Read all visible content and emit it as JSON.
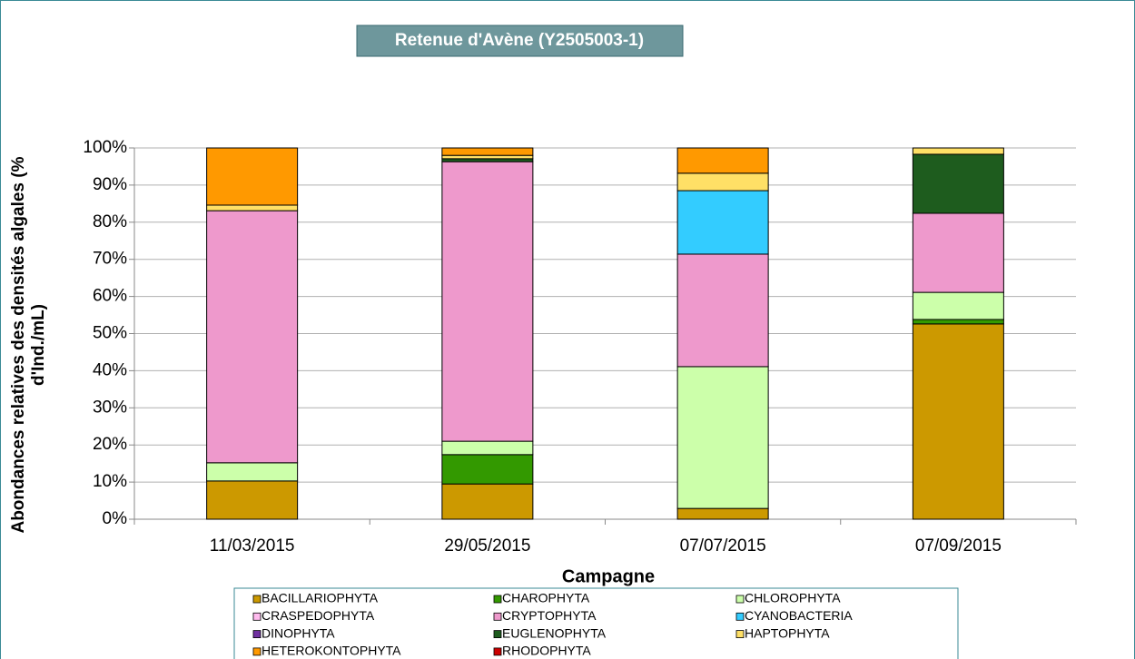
{
  "chart_data": {
    "type": "stacked_bar",
    "title": "Retenue d'Avène (Y2505003-1)",
    "x_label": "Campagne",
    "y_label": "Abondances relatives des densités algales (% d'Ind./mL)",
    "categories": [
      "11/03/2015",
      "29/05/2015",
      "07/07/2015",
      "07/09/2015"
    ],
    "series": [
      {
        "name": "BACILLARIOPHYTA",
        "color": "#cc9900",
        "values": [
          10.3,
          9.5,
          2.9,
          52.6
        ]
      },
      {
        "name": "CHAROPHYTA",
        "color": "#339900",
        "values": [
          0,
          7.9,
          0,
          1.2
        ]
      },
      {
        "name": "CHLOROPHYTA",
        "color": "#ccffaa",
        "values": [
          4.9,
          3.6,
          38.2,
          7.3
        ]
      },
      {
        "name": "CRASPEDOPHYTA",
        "color": "#ffbbee",
        "values": [
          0,
          0,
          0,
          0
        ]
      },
      {
        "name": "CRYPTOPHYTA",
        "color": "#ee99cc",
        "values": [
          67.9,
          75.3,
          30.3,
          21.3
        ]
      },
      {
        "name": "CYANOBACTERIA",
        "color": "#33ccff",
        "values": [
          0,
          0,
          17.1,
          0
        ]
      },
      {
        "name": "DINOPHYTA",
        "color": "#7030a0",
        "values": [
          0,
          0,
          0,
          0
        ]
      },
      {
        "name": "EUGLENOPHYTA",
        "color": "#1e5c1e",
        "values": [
          0,
          0.8,
          0,
          15.9
        ]
      },
      {
        "name": "HAPTOPHYTA",
        "color": "#ffe066",
        "values": [
          1.5,
          0.9,
          4.7,
          1.7
        ]
      },
      {
        "name": "HETEROKONTOPHYTA",
        "color": "#ff9900",
        "values": [
          15.4,
          2.0,
          6.8,
          0
        ]
      },
      {
        "name": "RHODOPHYTA",
        "color": "#cc0000",
        "values": [
          0,
          0,
          0,
          0
        ]
      }
    ],
    "ylim": [
      0,
      100
    ],
    "yticks": [
      {
        "value": 0,
        "label": "0%"
      },
      {
        "value": 10,
        "label": "10%"
      },
      {
        "value": 20,
        "label": "20%"
      },
      {
        "value": 30,
        "label": "30%"
      },
      {
        "value": 40,
        "label": "40%"
      },
      {
        "value": 50,
        "label": "50%"
      },
      {
        "value": 60,
        "label": "60%"
      },
      {
        "value": 70,
        "label": "70%"
      },
      {
        "value": 80,
        "label": "80%"
      },
      {
        "value": 90,
        "label": "90%"
      },
      {
        "value": 100,
        "label": "100%"
      }
    ],
    "grid": true
  }
}
